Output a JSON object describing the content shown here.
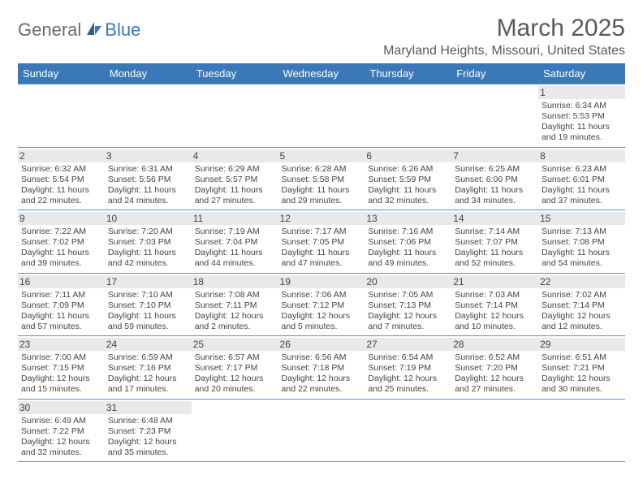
{
  "logo": {
    "general": "General",
    "blue": "Blue"
  },
  "title": "March 2025",
  "location": "Maryland Heights, Missouri, United States",
  "colors": {
    "header_bg": "#3b78b8",
    "header_text": "#ffffff",
    "body_text": "#444444",
    "title_text": "#5a5a5a",
    "daynum_bg": "#e9e9e9",
    "border": "#5a8fc7"
  },
  "weekdays": [
    "Sunday",
    "Monday",
    "Tuesday",
    "Wednesday",
    "Thursday",
    "Friday",
    "Saturday"
  ],
  "weeks": [
    [
      {
        "empty": true
      },
      {
        "empty": true
      },
      {
        "empty": true
      },
      {
        "empty": true
      },
      {
        "empty": true
      },
      {
        "empty": true
      },
      {
        "day": "1",
        "sunrise": "Sunrise: 6:34 AM",
        "sunset": "Sunset: 5:53 PM",
        "daylight": "Daylight: 11 hours and 19 minutes."
      }
    ],
    [
      {
        "day": "2",
        "sunrise": "Sunrise: 6:32 AM",
        "sunset": "Sunset: 5:54 PM",
        "daylight": "Daylight: 11 hours and 22 minutes."
      },
      {
        "day": "3",
        "sunrise": "Sunrise: 6:31 AM",
        "sunset": "Sunset: 5:56 PM",
        "daylight": "Daylight: 11 hours and 24 minutes."
      },
      {
        "day": "4",
        "sunrise": "Sunrise: 6:29 AM",
        "sunset": "Sunset: 5:57 PM",
        "daylight": "Daylight: 11 hours and 27 minutes."
      },
      {
        "day": "5",
        "sunrise": "Sunrise: 6:28 AM",
        "sunset": "Sunset: 5:58 PM",
        "daylight": "Daylight: 11 hours and 29 minutes."
      },
      {
        "day": "6",
        "sunrise": "Sunrise: 6:26 AM",
        "sunset": "Sunset: 5:59 PM",
        "daylight": "Daylight: 11 hours and 32 minutes."
      },
      {
        "day": "7",
        "sunrise": "Sunrise: 6:25 AM",
        "sunset": "Sunset: 6:00 PM",
        "daylight": "Daylight: 11 hours and 34 minutes."
      },
      {
        "day": "8",
        "sunrise": "Sunrise: 6:23 AM",
        "sunset": "Sunset: 6:01 PM",
        "daylight": "Daylight: 11 hours and 37 minutes."
      }
    ],
    [
      {
        "day": "9",
        "sunrise": "Sunrise: 7:22 AM",
        "sunset": "Sunset: 7:02 PM",
        "daylight": "Daylight: 11 hours and 39 minutes."
      },
      {
        "day": "10",
        "sunrise": "Sunrise: 7:20 AM",
        "sunset": "Sunset: 7:03 PM",
        "daylight": "Daylight: 11 hours and 42 minutes."
      },
      {
        "day": "11",
        "sunrise": "Sunrise: 7:19 AM",
        "sunset": "Sunset: 7:04 PM",
        "daylight": "Daylight: 11 hours and 44 minutes."
      },
      {
        "day": "12",
        "sunrise": "Sunrise: 7:17 AM",
        "sunset": "Sunset: 7:05 PM",
        "daylight": "Daylight: 11 hours and 47 minutes."
      },
      {
        "day": "13",
        "sunrise": "Sunrise: 7:16 AM",
        "sunset": "Sunset: 7:06 PM",
        "daylight": "Daylight: 11 hours and 49 minutes."
      },
      {
        "day": "14",
        "sunrise": "Sunrise: 7:14 AM",
        "sunset": "Sunset: 7:07 PM",
        "daylight": "Daylight: 11 hours and 52 minutes."
      },
      {
        "day": "15",
        "sunrise": "Sunrise: 7:13 AM",
        "sunset": "Sunset: 7:08 PM",
        "daylight": "Daylight: 11 hours and 54 minutes."
      }
    ],
    [
      {
        "day": "16",
        "sunrise": "Sunrise: 7:11 AM",
        "sunset": "Sunset: 7:09 PM",
        "daylight": "Daylight: 11 hours and 57 minutes."
      },
      {
        "day": "17",
        "sunrise": "Sunrise: 7:10 AM",
        "sunset": "Sunset: 7:10 PM",
        "daylight": "Daylight: 11 hours and 59 minutes."
      },
      {
        "day": "18",
        "sunrise": "Sunrise: 7:08 AM",
        "sunset": "Sunset: 7:11 PM",
        "daylight": "Daylight: 12 hours and 2 minutes."
      },
      {
        "day": "19",
        "sunrise": "Sunrise: 7:06 AM",
        "sunset": "Sunset: 7:12 PM",
        "daylight": "Daylight: 12 hours and 5 minutes."
      },
      {
        "day": "20",
        "sunrise": "Sunrise: 7:05 AM",
        "sunset": "Sunset: 7:13 PM",
        "daylight": "Daylight: 12 hours and 7 minutes."
      },
      {
        "day": "21",
        "sunrise": "Sunrise: 7:03 AM",
        "sunset": "Sunset: 7:14 PM",
        "daylight": "Daylight: 12 hours and 10 minutes."
      },
      {
        "day": "22",
        "sunrise": "Sunrise: 7:02 AM",
        "sunset": "Sunset: 7:14 PM",
        "daylight": "Daylight: 12 hours and 12 minutes."
      }
    ],
    [
      {
        "day": "23",
        "sunrise": "Sunrise: 7:00 AM",
        "sunset": "Sunset: 7:15 PM",
        "daylight": "Daylight: 12 hours and 15 minutes."
      },
      {
        "day": "24",
        "sunrise": "Sunrise: 6:59 AM",
        "sunset": "Sunset: 7:16 PM",
        "daylight": "Daylight: 12 hours and 17 minutes."
      },
      {
        "day": "25",
        "sunrise": "Sunrise: 6:57 AM",
        "sunset": "Sunset: 7:17 PM",
        "daylight": "Daylight: 12 hours and 20 minutes."
      },
      {
        "day": "26",
        "sunrise": "Sunrise: 6:56 AM",
        "sunset": "Sunset: 7:18 PM",
        "daylight": "Daylight: 12 hours and 22 minutes."
      },
      {
        "day": "27",
        "sunrise": "Sunrise: 6:54 AM",
        "sunset": "Sunset: 7:19 PM",
        "daylight": "Daylight: 12 hours and 25 minutes."
      },
      {
        "day": "28",
        "sunrise": "Sunrise: 6:52 AM",
        "sunset": "Sunset: 7:20 PM",
        "daylight": "Daylight: 12 hours and 27 minutes."
      },
      {
        "day": "29",
        "sunrise": "Sunrise: 6:51 AM",
        "sunset": "Sunset: 7:21 PM",
        "daylight": "Daylight: 12 hours and 30 minutes."
      }
    ],
    [
      {
        "day": "30",
        "sunrise": "Sunrise: 6:49 AM",
        "sunset": "Sunset: 7:22 PM",
        "daylight": "Daylight: 12 hours and 32 minutes."
      },
      {
        "day": "31",
        "sunrise": "Sunrise: 6:48 AM",
        "sunset": "Sunset: 7:23 PM",
        "daylight": "Daylight: 12 hours and 35 minutes."
      },
      {
        "empty": true
      },
      {
        "empty": true
      },
      {
        "empty": true
      },
      {
        "empty": true
      },
      {
        "empty": true
      }
    ]
  ]
}
